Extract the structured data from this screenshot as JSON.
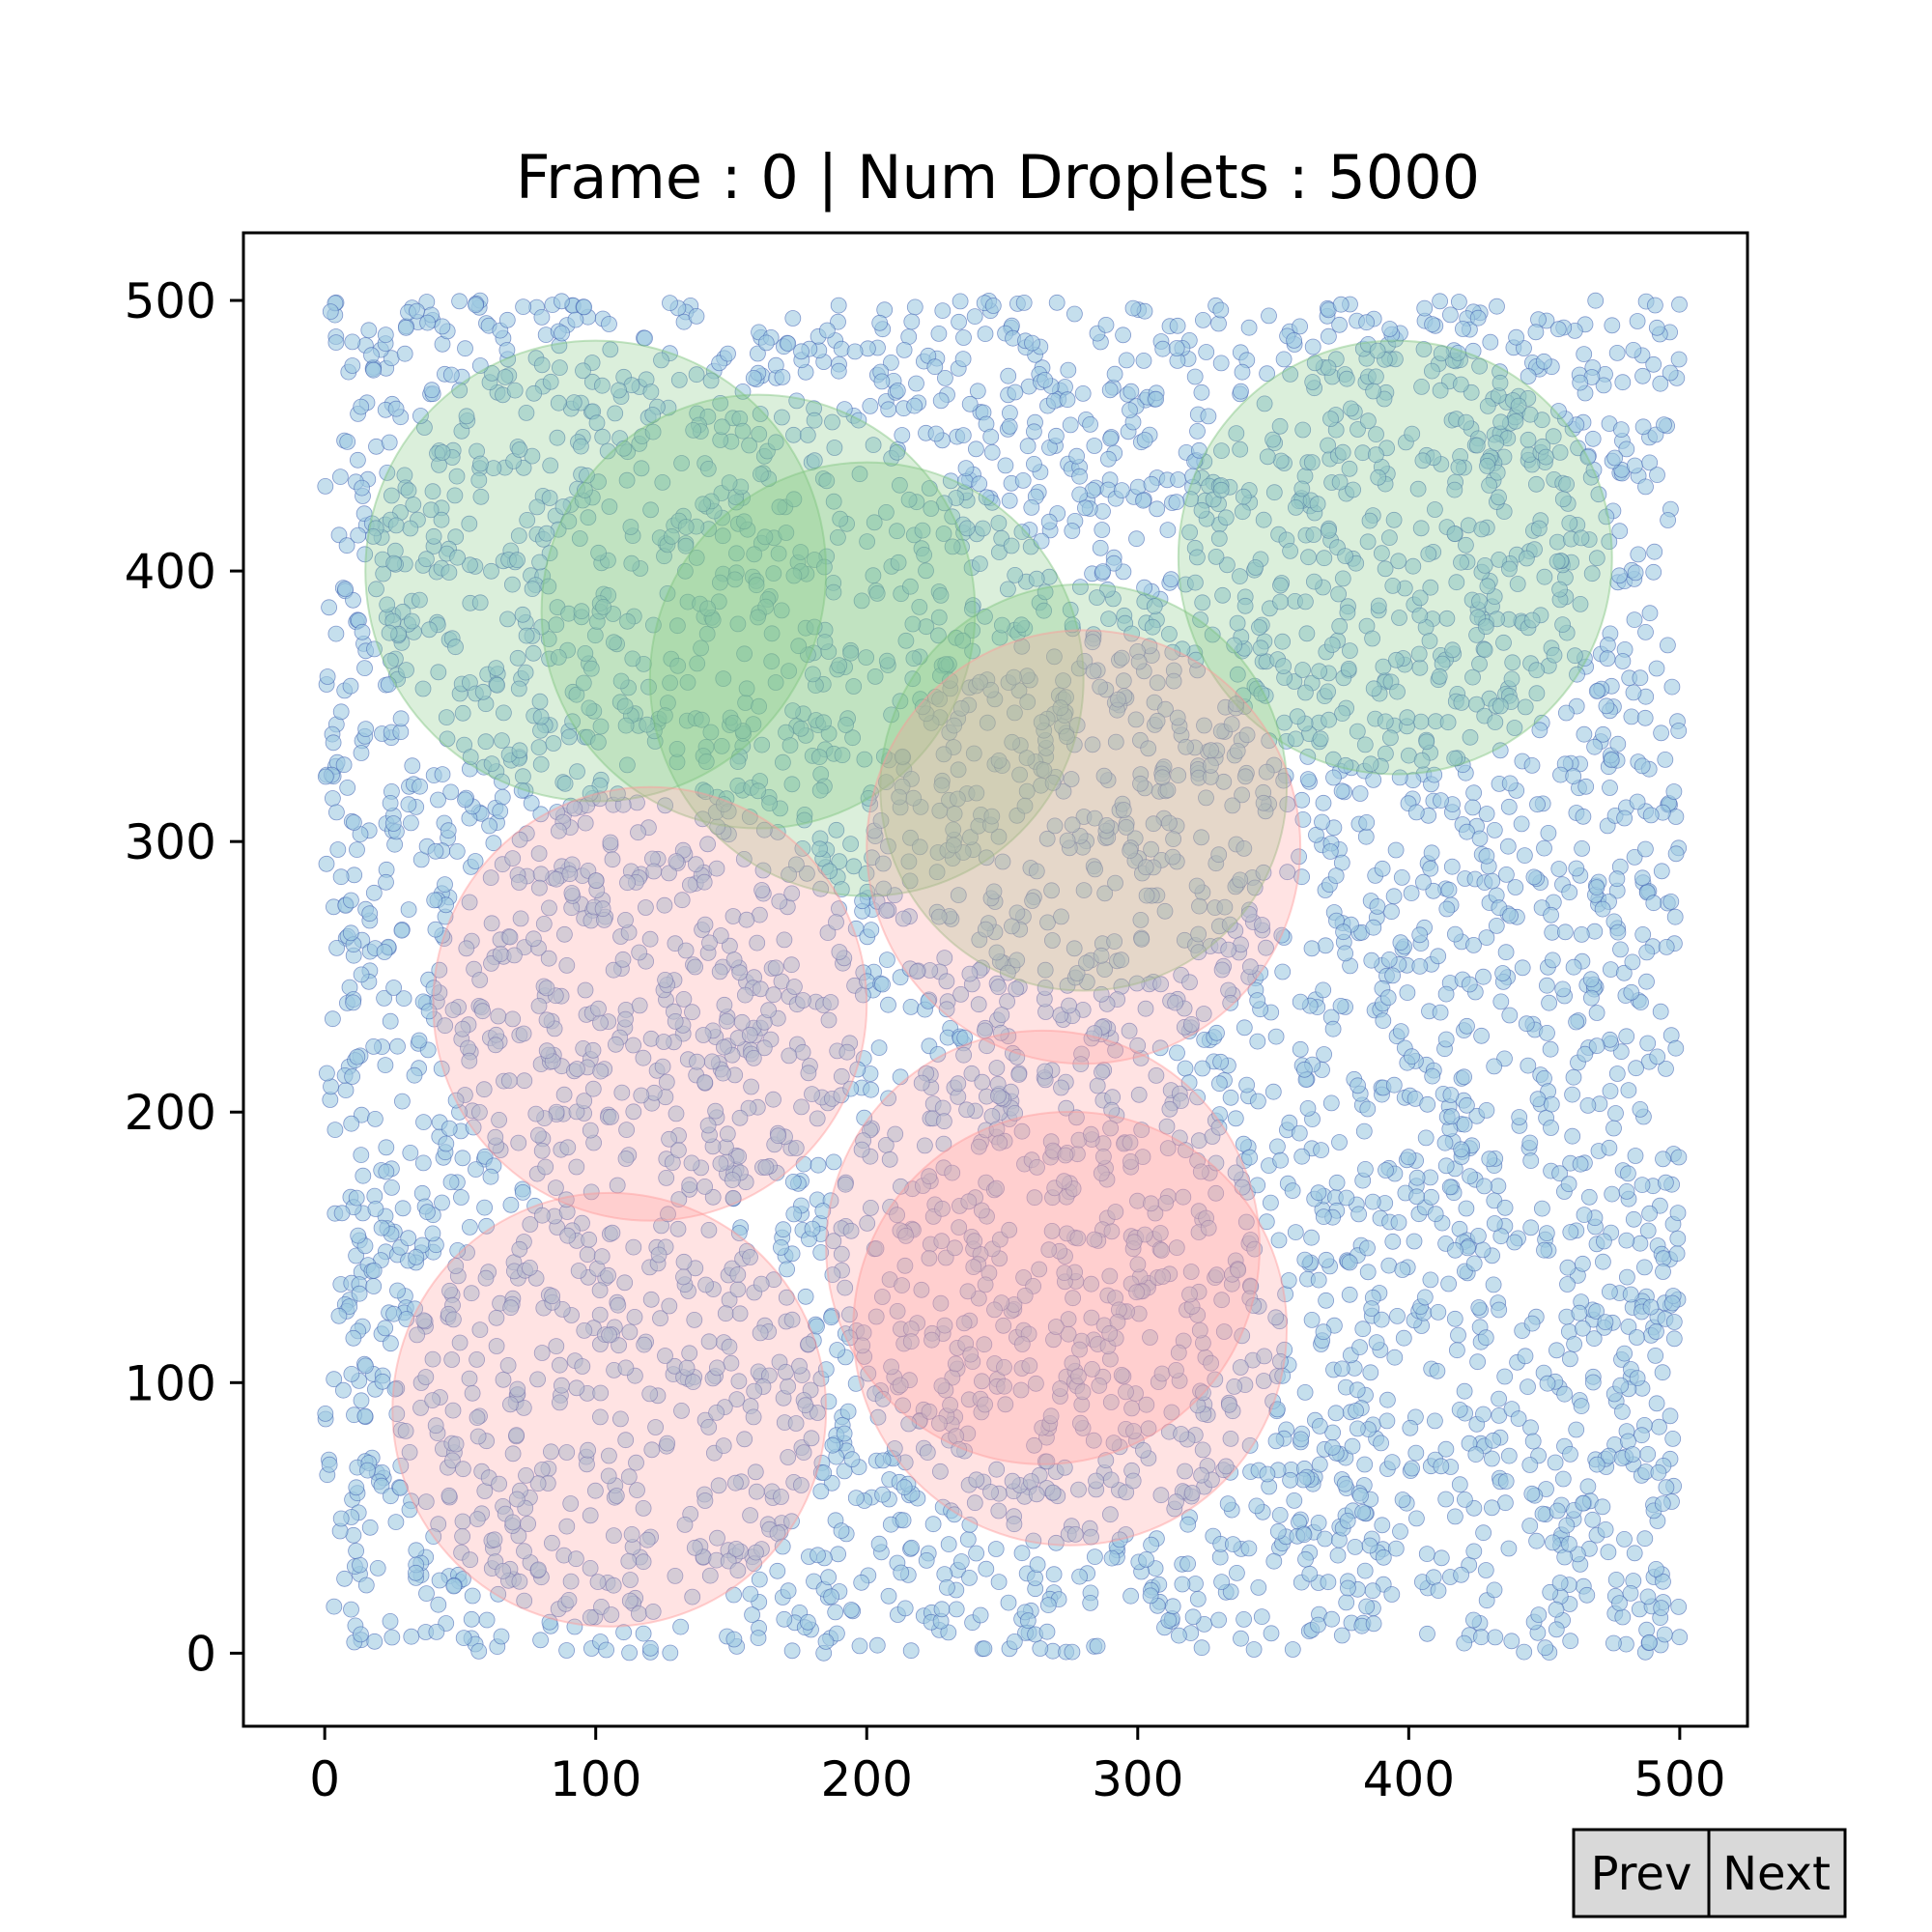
{
  "chart_data": {
    "type": "scatter",
    "title": "Frame : 0 | Num Droplets : 5000",
    "xlabel": "",
    "ylabel": "",
    "xlim": [
      -30,
      525
    ],
    "ylim": [
      -27,
      525
    ],
    "xticks": [
      0,
      100,
      200,
      300,
      400,
      500
    ],
    "yticks": [
      0,
      100,
      200,
      300,
      400,
      500
    ],
    "grid": false,
    "droplets": {
      "count": 5000,
      "domain": [
        [
          0,
          500
        ],
        [
          0,
          500
        ]
      ],
      "fill_color": "#9ecae1",
      "edge_color": "#3f5fb3",
      "seed": 7
    },
    "regions": [
      {
        "cx": 100,
        "cy": 400,
        "r": 85,
        "color": "#7fc47f"
      },
      {
        "cx": 160,
        "cy": 385,
        "r": 80,
        "color": "#7fc47f"
      },
      {
        "cx": 200,
        "cy": 360,
        "r": 80,
        "color": "#7fc47f"
      },
      {
        "cx": 280,
        "cy": 320,
        "r": 75,
        "color": "#7fc47f"
      },
      {
        "cx": 395,
        "cy": 405,
        "r": 80,
        "color": "#7fc47f"
      },
      {
        "cx": 280,
        "cy": 298,
        "r": 80,
        "color": "#ff9a9a"
      },
      {
        "cx": 120,
        "cy": 240,
        "r": 80,
        "color": "#ff9a9a"
      },
      {
        "cx": 105,
        "cy": 90,
        "r": 80,
        "color": "#ff9a9a"
      },
      {
        "cx": 265,
        "cy": 150,
        "r": 80,
        "color": "#ff9a9a"
      },
      {
        "cx": 275,
        "cy": 120,
        "r": 80,
        "color": "#ff9a9a"
      }
    ]
  },
  "controls": {
    "prev_label": "Prev",
    "next_label": "Next"
  }
}
